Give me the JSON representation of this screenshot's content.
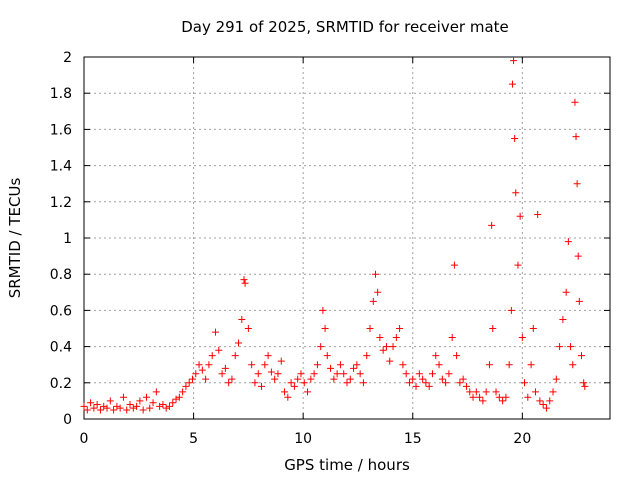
{
  "chart_data": {
    "type": "scatter",
    "title": "Day 291 of 2025, SRMTID for receiver mate",
    "xlabel": "GPS time / hours",
    "ylabel": "SRMTID / TECUs",
    "xlim": [
      0,
      24
    ],
    "ylim": [
      0,
      2
    ],
    "xticks": [
      0,
      5,
      10,
      15,
      20
    ],
    "yticks": [
      0,
      0.2,
      0.4,
      0.6,
      0.8,
      1,
      1.2,
      1.4,
      1.6,
      1.8,
      2
    ],
    "xtick_labels": [
      "0",
      "5",
      "10",
      "15",
      "20"
    ],
    "ytick_labels": [
      "0",
      "0.2",
      "0.4",
      "0.6",
      "0.8",
      "1",
      "1.2",
      "1.4",
      "1.6",
      "1.8",
      "2"
    ],
    "grid": true,
    "marker": "+",
    "color": "#ff0000",
    "series": [
      {
        "name": "SRMTID",
        "points": [
          [
            0.0,
            0.07
          ],
          [
            0.15,
            0.05
          ],
          [
            0.3,
            0.09
          ],
          [
            0.45,
            0.06
          ],
          [
            0.6,
            0.08
          ],
          [
            0.75,
            0.05
          ],
          [
            0.9,
            0.07
          ],
          [
            1.05,
            0.06
          ],
          [
            1.2,
            0.1
          ],
          [
            1.35,
            0.05
          ],
          [
            1.5,
            0.07
          ],
          [
            1.65,
            0.06
          ],
          [
            1.8,
            0.12
          ],
          [
            1.95,
            0.05
          ],
          [
            2.1,
            0.08
          ],
          [
            2.25,
            0.06
          ],
          [
            2.4,
            0.07
          ],
          [
            2.55,
            0.1
          ],
          [
            2.7,
            0.05
          ],
          [
            2.85,
            0.12
          ],
          [
            3.0,
            0.06
          ],
          [
            3.15,
            0.09
          ],
          [
            3.3,
            0.15
          ],
          [
            3.45,
            0.07
          ],
          [
            3.6,
            0.08
          ],
          [
            3.75,
            0.06
          ],
          [
            3.9,
            0.07
          ],
          [
            4.05,
            0.09
          ],
          [
            4.2,
            0.11
          ],
          [
            4.35,
            0.12
          ],
          [
            4.5,
            0.15
          ],
          [
            4.65,
            0.18
          ],
          [
            4.8,
            0.2
          ],
          [
            4.95,
            0.22
          ],
          [
            5.1,
            0.25
          ],
          [
            5.25,
            0.3
          ],
          [
            5.4,
            0.27
          ],
          [
            5.55,
            0.22
          ],
          [
            5.7,
            0.3
          ],
          [
            5.85,
            0.35
          ],
          [
            6.0,
            0.48
          ],
          [
            6.15,
            0.38
          ],
          [
            6.3,
            0.25
          ],
          [
            6.45,
            0.28
          ],
          [
            6.6,
            0.2
          ],
          [
            6.75,
            0.22
          ],
          [
            6.9,
            0.35
          ],
          [
            7.05,
            0.42
          ],
          [
            7.2,
            0.55
          ],
          [
            7.3,
            0.77
          ],
          [
            7.35,
            0.75
          ],
          [
            7.5,
            0.5
          ],
          [
            7.65,
            0.3
          ],
          [
            7.8,
            0.2
          ],
          [
            7.95,
            0.25
          ],
          [
            8.1,
            0.18
          ],
          [
            8.25,
            0.3
          ],
          [
            8.4,
            0.35
          ],
          [
            8.55,
            0.26
          ],
          [
            8.7,
            0.22
          ],
          [
            8.85,
            0.25
          ],
          [
            9.0,
            0.32
          ],
          [
            9.15,
            0.15
          ],
          [
            9.3,
            0.12
          ],
          [
            9.45,
            0.2
          ],
          [
            9.6,
            0.18
          ],
          [
            9.75,
            0.22
          ],
          [
            9.9,
            0.25
          ],
          [
            10.05,
            0.2
          ],
          [
            10.2,
            0.15
          ],
          [
            10.35,
            0.22
          ],
          [
            10.5,
            0.25
          ],
          [
            10.65,
            0.3
          ],
          [
            10.8,
            0.4
          ],
          [
            10.9,
            0.6
          ],
          [
            11.0,
            0.5
          ],
          [
            11.1,
            0.35
          ],
          [
            11.25,
            0.28
          ],
          [
            11.4,
            0.22
          ],
          [
            11.55,
            0.25
          ],
          [
            11.7,
            0.3
          ],
          [
            11.85,
            0.25
          ],
          [
            12.0,
            0.2
          ],
          [
            12.15,
            0.22
          ],
          [
            12.3,
            0.28
          ],
          [
            12.45,
            0.3
          ],
          [
            12.6,
            0.25
          ],
          [
            12.75,
            0.2
          ],
          [
            12.9,
            0.35
          ],
          [
            13.05,
            0.5
          ],
          [
            13.2,
            0.65
          ],
          [
            13.3,
            0.8
          ],
          [
            13.4,
            0.7
          ],
          [
            13.5,
            0.45
          ],
          [
            13.65,
            0.38
          ],
          [
            13.8,
            0.4
          ],
          [
            13.95,
            0.32
          ],
          [
            14.1,
            0.4
          ],
          [
            14.25,
            0.45
          ],
          [
            14.4,
            0.5
          ],
          [
            14.55,
            0.3
          ],
          [
            14.7,
            0.25
          ],
          [
            14.85,
            0.2
          ],
          [
            15.0,
            0.22
          ],
          [
            15.15,
            0.18
          ],
          [
            15.3,
            0.25
          ],
          [
            15.45,
            0.22
          ],
          [
            15.6,
            0.2
          ],
          [
            15.75,
            0.18
          ],
          [
            15.9,
            0.25
          ],
          [
            16.05,
            0.35
          ],
          [
            16.2,
            0.3
          ],
          [
            16.35,
            0.22
          ],
          [
            16.5,
            0.2
          ],
          [
            16.65,
            0.25
          ],
          [
            16.8,
            0.45
          ],
          [
            16.9,
            0.85
          ],
          [
            17.0,
            0.35
          ],
          [
            17.15,
            0.2
          ],
          [
            17.3,
            0.22
          ],
          [
            17.45,
            0.18
          ],
          [
            17.6,
            0.15
          ],
          [
            17.75,
            0.12
          ],
          [
            17.9,
            0.15
          ],
          [
            18.05,
            0.12
          ],
          [
            18.2,
            0.1
          ],
          [
            18.35,
            0.15
          ],
          [
            18.5,
            0.3
          ],
          [
            18.6,
            1.07
          ],
          [
            18.65,
            0.5
          ],
          [
            18.8,
            0.15
          ],
          [
            18.95,
            0.12
          ],
          [
            19.1,
            0.1
          ],
          [
            19.25,
            0.12
          ],
          [
            19.4,
            0.3
          ],
          [
            19.5,
            0.6
          ],
          [
            19.55,
            1.85
          ],
          [
            19.6,
            1.98
          ],
          [
            19.65,
            1.55
          ],
          [
            19.7,
            1.25
          ],
          [
            19.8,
            0.85
          ],
          [
            19.9,
            1.12
          ],
          [
            20.0,
            0.45
          ],
          [
            20.1,
            0.2
          ],
          [
            20.25,
            0.12
          ],
          [
            20.4,
            0.3
          ],
          [
            20.5,
            0.5
          ],
          [
            20.6,
            0.15
          ],
          [
            20.7,
            1.13
          ],
          [
            20.8,
            0.1
          ],
          [
            20.95,
            0.08
          ],
          [
            21.1,
            0.06
          ],
          [
            21.25,
            0.1
          ],
          [
            21.4,
            0.15
          ],
          [
            21.55,
            0.22
          ],
          [
            21.7,
            0.4
          ],
          [
            21.85,
            0.55
          ],
          [
            22.0,
            0.7
          ],
          [
            22.1,
            0.98
          ],
          [
            22.2,
            0.4
          ],
          [
            22.3,
            0.3
          ],
          [
            22.4,
            1.75
          ],
          [
            22.45,
            1.56
          ],
          [
            22.5,
            1.3
          ],
          [
            22.55,
            0.9
          ],
          [
            22.6,
            0.65
          ],
          [
            22.7,
            0.35
          ],
          [
            22.8,
            0.2
          ],
          [
            22.85,
            0.18
          ]
        ]
      }
    ]
  }
}
